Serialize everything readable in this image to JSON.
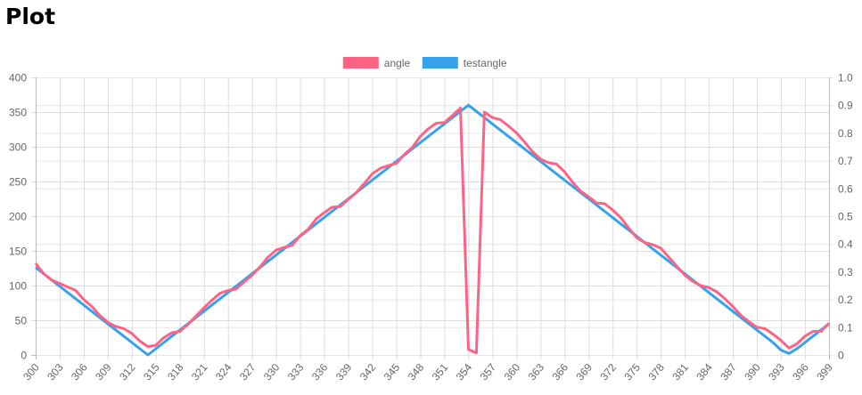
{
  "page": {
    "title": "Plot"
  },
  "chart_data": {
    "type": "line",
    "title": "",
    "legend_position": "top",
    "x": [
      300,
      301,
      302,
      303,
      304,
      305,
      306,
      307,
      308,
      309,
      310,
      311,
      312,
      313,
      314,
      315,
      316,
      317,
      318,
      319,
      320,
      321,
      322,
      323,
      324,
      325,
      326,
      327,
      328,
      329,
      330,
      331,
      332,
      333,
      334,
      335,
      336,
      337,
      338,
      339,
      340,
      341,
      342,
      343,
      344,
      345,
      346,
      347,
      348,
      349,
      350,
      351,
      352,
      353,
      354,
      355,
      356,
      357,
      358,
      359,
      360,
      361,
      362,
      363,
      364,
      365,
      366,
      367,
      368,
      369,
      370,
      371,
      372,
      373,
      374,
      375,
      376,
      377,
      378,
      379,
      380,
      381,
      382,
      383,
      384,
      385,
      386,
      387,
      388,
      389,
      390,
      391,
      392,
      393,
      394,
      395,
      396,
      397,
      398,
      399
    ],
    "x_tick_labels": [
      "300",
      "303",
      "306",
      "309",
      "312",
      "315",
      "318",
      "321",
      "324",
      "327",
      "330",
      "333",
      "336",
      "339",
      "342",
      "345",
      "348",
      "351",
      "354",
      "357",
      "360",
      "363",
      "366",
      "369",
      "372",
      "375",
      "378",
      "381",
      "384",
      "387",
      "390",
      "393",
      "396",
      "399"
    ],
    "series": [
      {
        "name": "angle",
        "color": "#ff6384",
        "axis": "left",
        "values": [
          132,
          117,
          108,
          103,
          98,
          93,
          80,
          70,
          57,
          47,
          41,
          38,
          31,
          20,
          12,
          14,
          25,
          32,
          34,
          44,
          56,
          68,
          79,
          89,
          93,
          95,
          105,
          115,
          127,
          141,
          151,
          155,
          158,
          172,
          181,
          196,
          205,
          213,
          214,
          224,
          234,
          247,
          261,
          269,
          273,
          276,
          289,
          299,
          315,
          326,
          334,
          335,
          345,
          356,
          8,
          3,
          350,
          342,
          339,
          330,
          320,
          307,
          293,
          282,
          277,
          275,
          264,
          249,
          236,
          228,
          219,
          218,
          209,
          198,
          183,
          169,
          162,
          159,
          154,
          141,
          128,
          115,
          106,
          100,
          97,
          91,
          81,
          70,
          57,
          48,
          40,
          38,
          30,
          21,
          10,
          16,
          27,
          34,
          34,
          46
        ]
      },
      {
        "name": "testangle",
        "color": "#36a2eb",
        "axis": "left",
        "values": [
          126,
          117,
          108,
          99,
          90,
          81,
          72,
          63,
          54,
          45,
          36,
          27,
          18,
          9,
          0,
          9,
          18,
          27,
          36,
          45,
          54,
          63,
          72,
          81,
          90,
          99,
          108,
          117,
          126,
          135,
          144,
          153,
          162,
          171,
          180,
          189,
          198,
          207,
          216,
          225,
          234,
          243,
          252,
          261,
          270,
          279,
          288,
          297,
          306,
          315,
          324,
          333,
          342,
          351,
          360,
          351,
          342,
          333,
          324,
          315,
          306,
          297,
          288,
          279,
          270,
          261,
          252,
          243,
          234,
          225,
          216,
          207,
          198,
          189,
          180,
          171,
          162,
          153,
          144,
          135,
          126,
          117,
          108,
          99,
          90,
          81,
          72,
          63,
          54,
          45,
          36,
          27,
          18,
          7,
          2,
          9,
          18,
          27,
          36,
          45
        ]
      }
    ],
    "y_left": {
      "ylim": [
        0,
        400
      ],
      "ticks": [
        "0",
        "50",
        "100",
        "150",
        "200",
        "250",
        "300",
        "350",
        "400"
      ]
    },
    "y_right": {
      "ylim": [
        0,
        1
      ],
      "ticks": [
        "0",
        "0.1",
        "0.2",
        "0.3",
        "0.4",
        "0.5",
        "0.6",
        "0.7",
        "0.8",
        "0.9",
        "1.0"
      ]
    },
    "grid": true
  }
}
